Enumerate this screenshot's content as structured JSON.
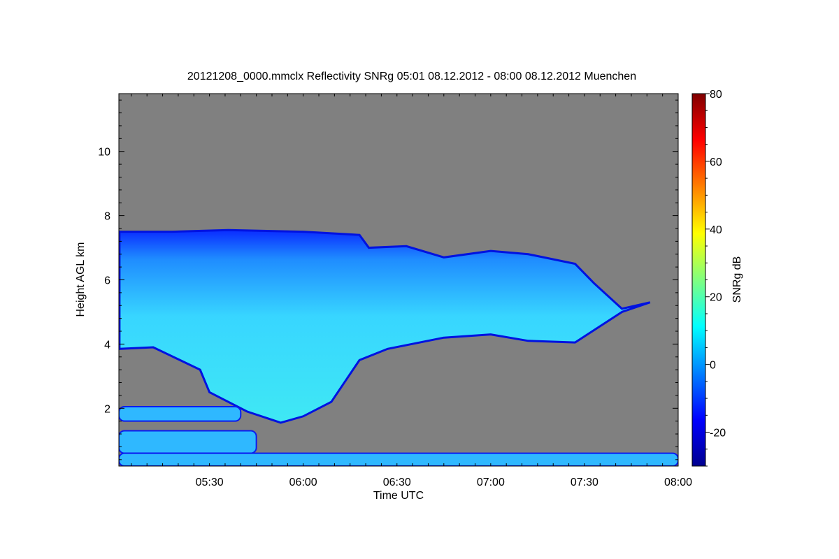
{
  "chart_data": {
    "type": "heatmap",
    "title": "20121208_0000.mmclx Reflectivity SNRg   05:01 08.12.2012 - 08:00 08.12.2012 Muenchen",
    "xlabel": "Time UTC",
    "ylabel": "Height AGL km",
    "colorbar_label": "SNRg dB",
    "x_range": [
      "05:01",
      "08:00"
    ],
    "x_ticks": [
      "05:30",
      "06:00",
      "06:30",
      "07:00",
      "07:30",
      "08:00"
    ],
    "y_range": [
      0.2,
      11.8
    ],
    "y_ticks": [
      "2",
      "4",
      "6",
      "8",
      "10"
    ],
    "colorbar_range": [
      -30,
      80
    ],
    "colorbar_ticks": [
      "-20",
      "0",
      "20",
      "40",
      "60",
      "80"
    ],
    "background_color": "#808080",
    "colormap": "jet",
    "features": [
      {
        "label": "upper cloud layer",
        "top_km": [
          [
            5.02,
            7.5
          ],
          [
            5.3,
            7.5
          ],
          [
            5.6,
            7.55
          ],
          [
            6.0,
            7.5
          ],
          [
            6.3,
            7.4
          ],
          [
            6.35,
            7.0
          ],
          [
            6.55,
            7.05
          ],
          [
            6.75,
            6.7
          ],
          [
            7.0,
            6.9
          ],
          [
            7.2,
            6.8
          ],
          [
            7.45,
            6.5
          ],
          [
            7.55,
            5.9
          ],
          [
            7.7,
            5.1
          ],
          [
            7.85,
            5.3
          ]
        ],
        "base_km": [
          [
            5.02,
            3.85
          ],
          [
            5.2,
            3.9
          ],
          [
            5.45,
            3.2
          ],
          [
            5.5,
            2.5
          ],
          [
            5.7,
            1.9
          ],
          [
            5.88,
            1.55
          ],
          [
            6.0,
            1.75
          ],
          [
            6.15,
            2.2
          ],
          [
            6.3,
            3.5
          ],
          [
            6.45,
            3.85
          ],
          [
            6.75,
            4.2
          ],
          [
            7.0,
            4.3
          ],
          [
            7.2,
            4.1
          ],
          [
            7.45,
            4.05
          ],
          [
            7.7,
            5.0
          ],
          [
            7.85,
            5.3
          ]
        ]
      },
      {
        "label": "low layer",
        "time": [
          "05:01",
          "05:40"
        ],
        "km": [
          1.6,
          2.05
        ]
      },
      {
        "label": "low layer",
        "time": [
          "05:01",
          "05:45"
        ],
        "km": [
          0.6,
          1.3
        ]
      },
      {
        "label": "boundary layer",
        "time": [
          "05:01",
          "08:00"
        ],
        "km": [
          0.2,
          0.6
        ]
      }
    ]
  }
}
